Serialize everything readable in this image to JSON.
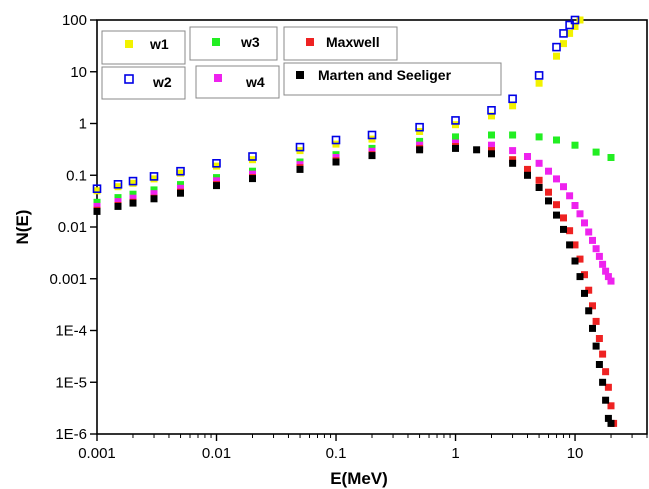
{
  "chart_data": {
    "type": "scatter",
    "xlabel": "E(MeV)",
    "ylabel": "N(E)",
    "xscale": "log",
    "yscale": "log",
    "xlim": [
      0.001,
      40
    ],
    "ylim": [
      1e-06,
      100
    ],
    "x_ticks": [
      "0.001",
      "0.01",
      "0.1",
      "1",
      "10"
    ],
    "y_ticks": [
      "1E-6",
      "1E-5",
      "1E-4",
      "0.001",
      "0.01",
      "0.1",
      "1",
      "10",
      "100"
    ],
    "legend_placement": "top",
    "series": [
      {
        "name": "w1",
        "color": "#f2f200",
        "marker": "filled-square",
        "x": [
          0.001,
          0.0015,
          0.002,
          0.003,
          0.005,
          0.01,
          0.02,
          0.05,
          0.1,
          0.2,
          0.5,
          1,
          2,
          3,
          5,
          7,
          8,
          9,
          10,
          11
        ],
        "y": [
          0.05,
          0.06,
          0.07,
          0.085,
          0.11,
          0.15,
          0.2,
          0.3,
          0.4,
          0.5,
          0.7,
          0.95,
          1.4,
          2.2,
          6,
          20,
          35,
          55,
          75,
          100
        ]
      },
      {
        "name": "w2",
        "color": "#0000e6",
        "marker": "square",
        "x": [
          0.001,
          0.0015,
          0.002,
          0.003,
          0.005,
          0.01,
          0.02,
          0.05,
          0.1,
          0.2,
          0.5,
          1,
          2,
          3,
          5,
          7,
          8,
          9,
          10
        ],
        "y": [
          0.055,
          0.067,
          0.077,
          0.095,
          0.12,
          0.17,
          0.23,
          0.35,
          0.48,
          0.6,
          0.85,
          1.15,
          1.8,
          3,
          8.5,
          30,
          55,
          80,
          100
        ]
      },
      {
        "name": "w3",
        "color": "#22ee22",
        "marker": "filled-square",
        "x": [
          0.001,
          0.0015,
          0.002,
          0.003,
          0.005,
          0.01,
          0.02,
          0.05,
          0.1,
          0.2,
          0.5,
          1,
          2,
          3,
          5,
          7,
          10,
          15,
          20
        ],
        "y": [
          0.03,
          0.037,
          0.043,
          0.052,
          0.066,
          0.09,
          0.12,
          0.18,
          0.25,
          0.33,
          0.45,
          0.55,
          0.6,
          0.6,
          0.55,
          0.48,
          0.38,
          0.28,
          0.22
        ]
      },
      {
        "name": "w4",
        "color": "#ee22ee",
        "marker": "filled-square",
        "x": [
          0.001,
          0.0015,
          0.002,
          0.003,
          0.005,
          0.01,
          0.02,
          0.05,
          0.1,
          0.2,
          0.5,
          1,
          2,
          3,
          4,
          5,
          6,
          7,
          8,
          9,
          10,
          11,
          12,
          13,
          14,
          15,
          16,
          17,
          18,
          19,
          20
        ],
        "y": [
          0.025,
          0.031,
          0.036,
          0.044,
          0.056,
          0.078,
          0.105,
          0.16,
          0.22,
          0.29,
          0.38,
          0.42,
          0.38,
          0.3,
          0.23,
          0.17,
          0.12,
          0.085,
          0.06,
          0.04,
          0.026,
          0.018,
          0.012,
          0.008,
          0.0055,
          0.0038,
          0.0027,
          0.0019,
          0.0014,
          0.0011,
          0.0009
        ]
      },
      {
        "name": "Maxwell",
        "color": "#ee2222",
        "marker": "filled-square",
        "x": [
          0.001,
          0.0015,
          0.002,
          0.003,
          0.005,
          0.01,
          0.02,
          0.05,
          0.1,
          0.2,
          0.5,
          1,
          2,
          3,
          4,
          5,
          6,
          7,
          8,
          9,
          10,
          11,
          12,
          13,
          14,
          15,
          16,
          17,
          18,
          19,
          20,
          21
        ],
        "y": [
          0.021,
          0.026,
          0.03,
          0.036,
          0.047,
          0.066,
          0.09,
          0.14,
          0.19,
          0.25,
          0.33,
          0.36,
          0.3,
          0.2,
          0.13,
          0.08,
          0.047,
          0.027,
          0.015,
          0.0085,
          0.0045,
          0.0024,
          0.0012,
          0.0006,
          0.0003,
          0.00015,
          7e-05,
          3.5e-05,
          1.6e-05,
          8e-06,
          3.5e-06,
          1.6e-06
        ]
      },
      {
        "name": "Marten and Seeliger",
        "color": "#000000",
        "marker": "filled-square",
        "x": [
          0.001,
          0.0015,
          0.002,
          0.003,
          0.005,
          0.01,
          0.02,
          0.05,
          0.1,
          0.2,
          0.5,
          1,
          1.5,
          2,
          3,
          4,
          5,
          6,
          7,
          8,
          9,
          10,
          11,
          12,
          13,
          14,
          15,
          16,
          17,
          18,
          19,
          20
        ],
        "y": [
          0.02,
          0.025,
          0.029,
          0.035,
          0.045,
          0.063,
          0.086,
          0.13,
          0.18,
          0.24,
          0.31,
          0.33,
          0.31,
          0.26,
          0.17,
          0.1,
          0.058,
          0.032,
          0.017,
          0.009,
          0.0045,
          0.0022,
          0.0011,
          0.00052,
          0.00024,
          0.00011,
          5e-05,
          2.2e-05,
          1e-05,
          4.5e-06,
          2e-06,
          1.6e-06
        ]
      }
    ]
  }
}
